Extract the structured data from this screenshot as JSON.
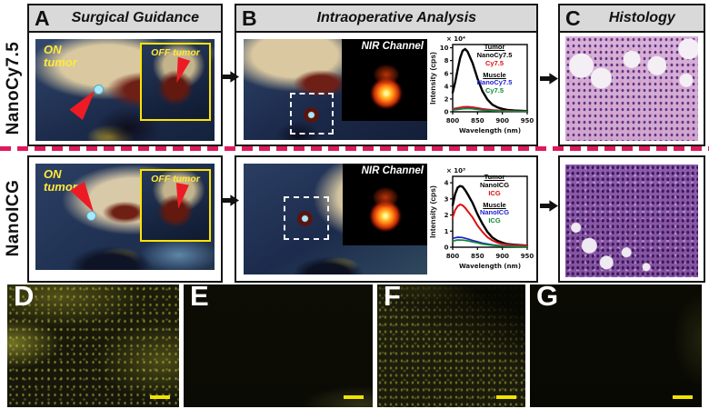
{
  "figure": {
    "row_labels": [
      "NanoCy7.5",
      "NanoICG"
    ],
    "headers": {
      "a": {
        "letter": "A",
        "title": "Surgical Guidance"
      },
      "b": {
        "letter": "B",
        "title": "Intraoperative Analysis"
      },
      "c": {
        "letter": "C",
        "title": "Histology"
      }
    },
    "bottom_letters": {
      "d": "D",
      "e": "E",
      "f": "F",
      "g": "G"
    },
    "annotations": {
      "on_tumor": "ON tumor",
      "off_tumor": "OFF tumor",
      "nir_channel": "NIR Channel"
    },
    "colors": {
      "divider_pink": "#e0195e",
      "annotation_yellow": "#ffe93c",
      "inset_border_yellow": "#ffe400",
      "pointer_red": "#ed1c24",
      "scalebar_yellow": "#f0e400"
    }
  },
  "chart_data": [
    {
      "type": "line",
      "xlabel": "Wavelength (nm)",
      "ylabel": "Intensity (cps)",
      "multiplier": "× 10⁴",
      "xlim": [
        800,
        950
      ],
      "ylim": [
        0,
        10.5
      ],
      "xticks": [
        800,
        850,
        900,
        950
      ],
      "yticks": [
        0,
        2,
        4,
        6,
        8,
        10
      ],
      "legend": [
        {
          "label": "Tumor",
          "color": "#000000",
          "underline": true
        },
        {
          "label": "NanoCy7.5",
          "color": "#000000"
        },
        {
          "label": "Cy7.5",
          "color": "#dd1111"
        },
        {
          "label": "Muscle",
          "color": "#000000",
          "underline": true,
          "gap": true
        },
        {
          "label": "NanoCy7.5",
          "color": "#2222cc"
        },
        {
          "label": "Cy7.5",
          "color": "#118833"
        }
      ],
      "series": [
        {
          "name": "Tumor NanoCy7.5",
          "color": "#000000",
          "width": 2.4,
          "x": [
            800,
            805,
            810,
            815,
            820,
            825,
            830,
            840,
            850,
            860,
            870,
            880,
            890,
            900,
            910,
            925,
            950
          ],
          "y": [
            3.0,
            4.6,
            6.6,
            8.4,
            9.5,
            9.8,
            9.4,
            7.6,
            5.2,
            3.2,
            1.9,
            1.1,
            0.7,
            0.45,
            0.3,
            0.2,
            0.12
          ]
        },
        {
          "name": "Tumor Cy7.5",
          "color": "#dd1111",
          "width": 1.8,
          "x": [
            800,
            810,
            820,
            830,
            840,
            850,
            860,
            880,
            900,
            925,
            950
          ],
          "y": [
            0.45,
            0.6,
            0.75,
            0.8,
            0.72,
            0.6,
            0.45,
            0.28,
            0.18,
            0.12,
            0.1
          ]
        },
        {
          "name": "Muscle NanoCy7.5",
          "color": "#2222cc",
          "width": 1.6,
          "x": [
            800,
            810,
            820,
            830,
            840,
            850,
            860,
            880,
            900,
            925,
            950
          ],
          "y": [
            0.3,
            0.4,
            0.5,
            0.55,
            0.5,
            0.4,
            0.3,
            0.18,
            0.1,
            0.07,
            0.05
          ]
        },
        {
          "name": "Muscle Cy7.5",
          "color": "#118833",
          "width": 1.6,
          "x": [
            800,
            810,
            820,
            830,
            840,
            850,
            860,
            880,
            900,
            925,
            950
          ],
          "y": [
            0.25,
            0.35,
            0.45,
            0.5,
            0.45,
            0.35,
            0.25,
            0.15,
            0.08,
            0.05,
            0.04
          ]
        }
      ]
    },
    {
      "type": "line",
      "xlabel": "Wavelength (nm)",
      "ylabel": "Intensity (cps)",
      "multiplier": "× 10³",
      "xlim": [
        800,
        950
      ],
      "ylim": [
        0,
        4.4
      ],
      "xticks": [
        800,
        850,
        900,
        950
      ],
      "yticks": [
        0,
        1,
        2,
        3,
        4
      ],
      "legend": [
        {
          "label": "Tumor",
          "color": "#000000",
          "underline": true
        },
        {
          "label": "NanoICG",
          "color": "#000000"
        },
        {
          "label": "ICG",
          "color": "#dd1111"
        },
        {
          "label": "Muscle",
          "color": "#000000",
          "underline": true,
          "gap": true
        },
        {
          "label": "NanoICG",
          "color": "#2222cc"
        },
        {
          "label": "ICG",
          "color": "#118833"
        }
      ],
      "series": [
        {
          "name": "Tumor NanoICG",
          "color": "#000000",
          "width": 2.4,
          "x": [
            800,
            805,
            810,
            815,
            820,
            825,
            830,
            840,
            850,
            860,
            870,
            880,
            890,
            900,
            910,
            925,
            950
          ],
          "y": [
            2.6,
            3.3,
            3.7,
            3.8,
            3.75,
            3.55,
            3.3,
            2.75,
            2.05,
            1.45,
            0.95,
            0.6,
            0.4,
            0.28,
            0.2,
            0.15,
            0.1
          ]
        },
        {
          "name": "Tumor ICG",
          "color": "#dd1111",
          "width": 2.0,
          "x": [
            800,
            805,
            810,
            815,
            820,
            825,
            830,
            840,
            850,
            860,
            870,
            880,
            890,
            900,
            925,
            950
          ],
          "y": [
            1.85,
            2.3,
            2.55,
            2.65,
            2.6,
            2.45,
            2.25,
            1.85,
            1.35,
            0.95,
            0.62,
            0.42,
            0.28,
            0.2,
            0.12,
            0.1
          ]
        },
        {
          "name": "Muscle NanoICG",
          "color": "#2222cc",
          "width": 1.7,
          "x": [
            800,
            810,
            820,
            830,
            840,
            850,
            860,
            880,
            900,
            925,
            950
          ],
          "y": [
            0.55,
            0.62,
            0.6,
            0.52,
            0.42,
            0.34,
            0.26,
            0.15,
            0.08,
            0.05,
            0.04
          ]
        },
        {
          "name": "Muscle ICG",
          "color": "#118833",
          "width": 1.7,
          "x": [
            800,
            810,
            820,
            830,
            840,
            850,
            860,
            880,
            900,
            925,
            950
          ],
          "y": [
            0.38,
            0.45,
            0.44,
            0.4,
            0.33,
            0.27,
            0.2,
            0.12,
            0.06,
            0.04,
            0.03
          ]
        }
      ]
    }
  ]
}
